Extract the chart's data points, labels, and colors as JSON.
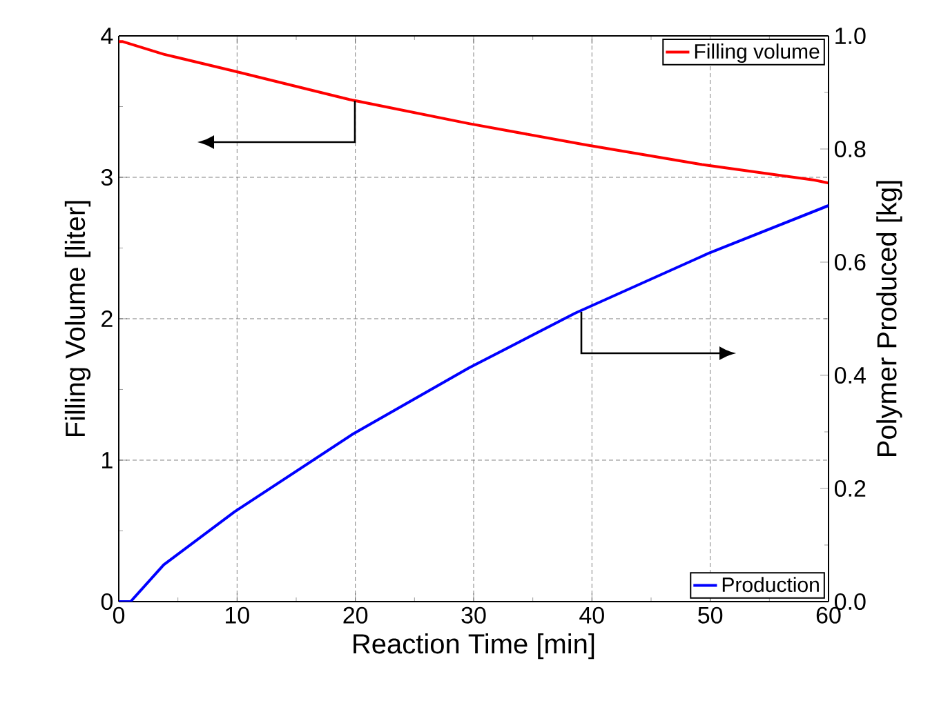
{
  "chart_data": {
    "type": "line",
    "xlabel": "Reaction Time [min]",
    "ylabel": "Filling Volume [liter]",
    "y2label": "Polymer Produced [kg]",
    "xlim": [
      0,
      60
    ],
    "xticks": [
      0,
      10,
      20,
      30,
      40,
      50,
      60
    ],
    "ylim": [
      0,
      4
    ],
    "yticks": [
      0,
      1,
      2,
      3,
      4
    ],
    "y2lim": [
      0,
      1
    ],
    "y2ticks": [
      {
        "value": 0,
        "label": "0.0"
      },
      {
        "value": 0.2,
        "label": "0.2"
      },
      {
        "value": 0.4,
        "label": "0.4"
      },
      {
        "value": 0.6,
        "label": "0.6"
      },
      {
        "value": 0.8,
        "label": "0.8"
      },
      {
        "value": 1,
        "label": "1.0"
      }
    ],
    "grid": true,
    "legend": "top right",
    "line_style": "solid",
    "marker": "none",
    "series": [
      {
        "name": "Filling volume",
        "color": "#ff0000",
        "x": [
          0,
          0.3,
          3.8,
          9.8,
          19.5,
          29.6,
          39.4,
          49.3,
          58.8,
          60
        ],
        "values": [
          3.96,
          3.96,
          3.87,
          3.75,
          3.55,
          3.38,
          3.23,
          3.09,
          2.98,
          2.96
        ]
      },
      {
        "name": "Production",
        "color": "#0000ff",
        "axis": "y2",
        "x": [
          0,
          1,
          3.8,
          9.8,
          19.7,
          29.6,
          38.6,
          50,
          60
        ],
        "values": [
          0,
          0,
          0.065,
          0.159,
          0.295,
          0.413,
          0.51,
          0.617,
          0.7
        ]
      }
    ]
  }
}
